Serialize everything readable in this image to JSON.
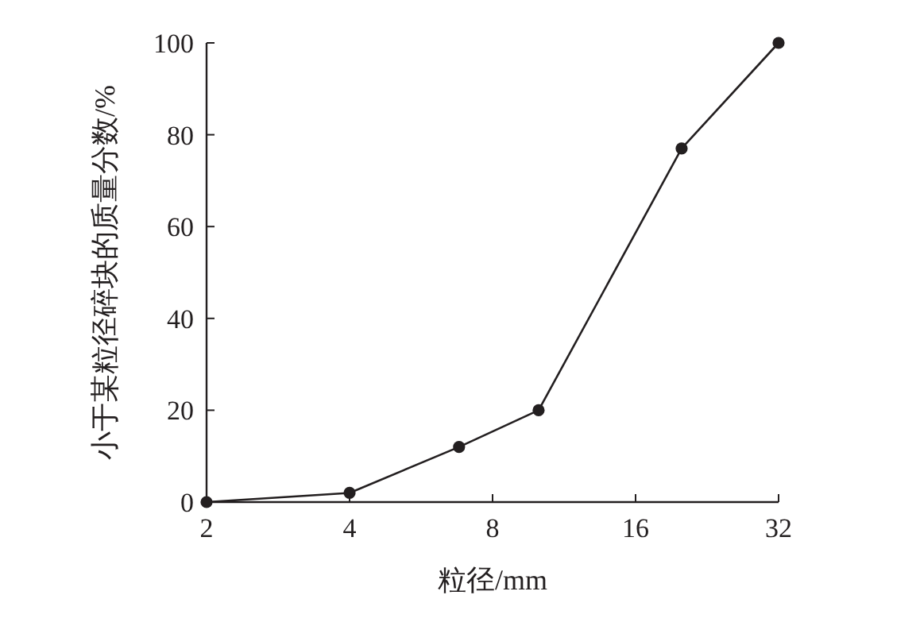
{
  "chart_data": {
    "type": "line",
    "xlabel": "粒径/mm",
    "ylabel": "小于某粒径碎块的质量分数/%",
    "log": "x",
    "x": [
      2,
      4,
      6.8,
      10,
      20,
      32
    ],
    "series": [
      {
        "color": "#231f20",
        "values": [
          0,
          2,
          12,
          20,
          77,
          100
        ]
      }
    ],
    "xlim": [
      2,
      32
    ],
    "xticks": [
      2,
      4,
      8,
      16,
      32
    ],
    "ylim": [
      0,
      100
    ],
    "yticks": [
      0,
      20,
      40,
      60,
      80,
      100
    ],
    "marker": "circle",
    "line_style": "solid",
    "grid": false
  }
}
